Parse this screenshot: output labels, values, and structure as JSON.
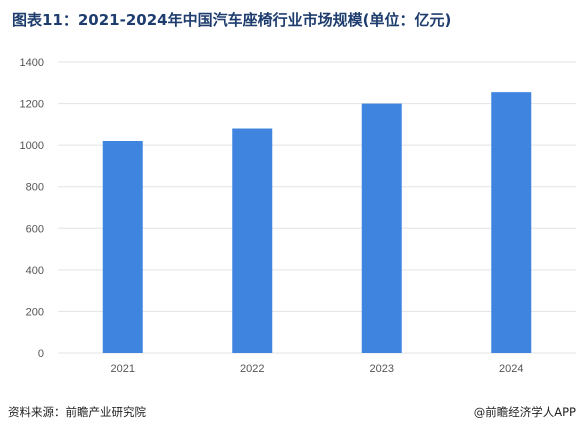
{
  "title": "图表11：2021-2024年中国汽车座椅行业市场规模(单位：亿元)",
  "footer": {
    "source": "资料来源：前瞻产业研究院",
    "credit": "@前瞻经济学人APP"
  },
  "colors": {
    "bar": "#3f85e0",
    "grid": "#e3e3e3",
    "axis_text": "#555555",
    "title": "#1e3d6e"
  },
  "chart_data": {
    "type": "bar",
    "categories": [
      "2021",
      "2022",
      "2023",
      "2024"
    ],
    "values": [
      1020,
      1080,
      1200,
      1255
    ],
    "ylim": [
      0,
      1400
    ],
    "yticks": [
      0,
      200,
      400,
      600,
      800,
      1000,
      1200,
      1400
    ],
    "grid": true,
    "legend": "none"
  }
}
